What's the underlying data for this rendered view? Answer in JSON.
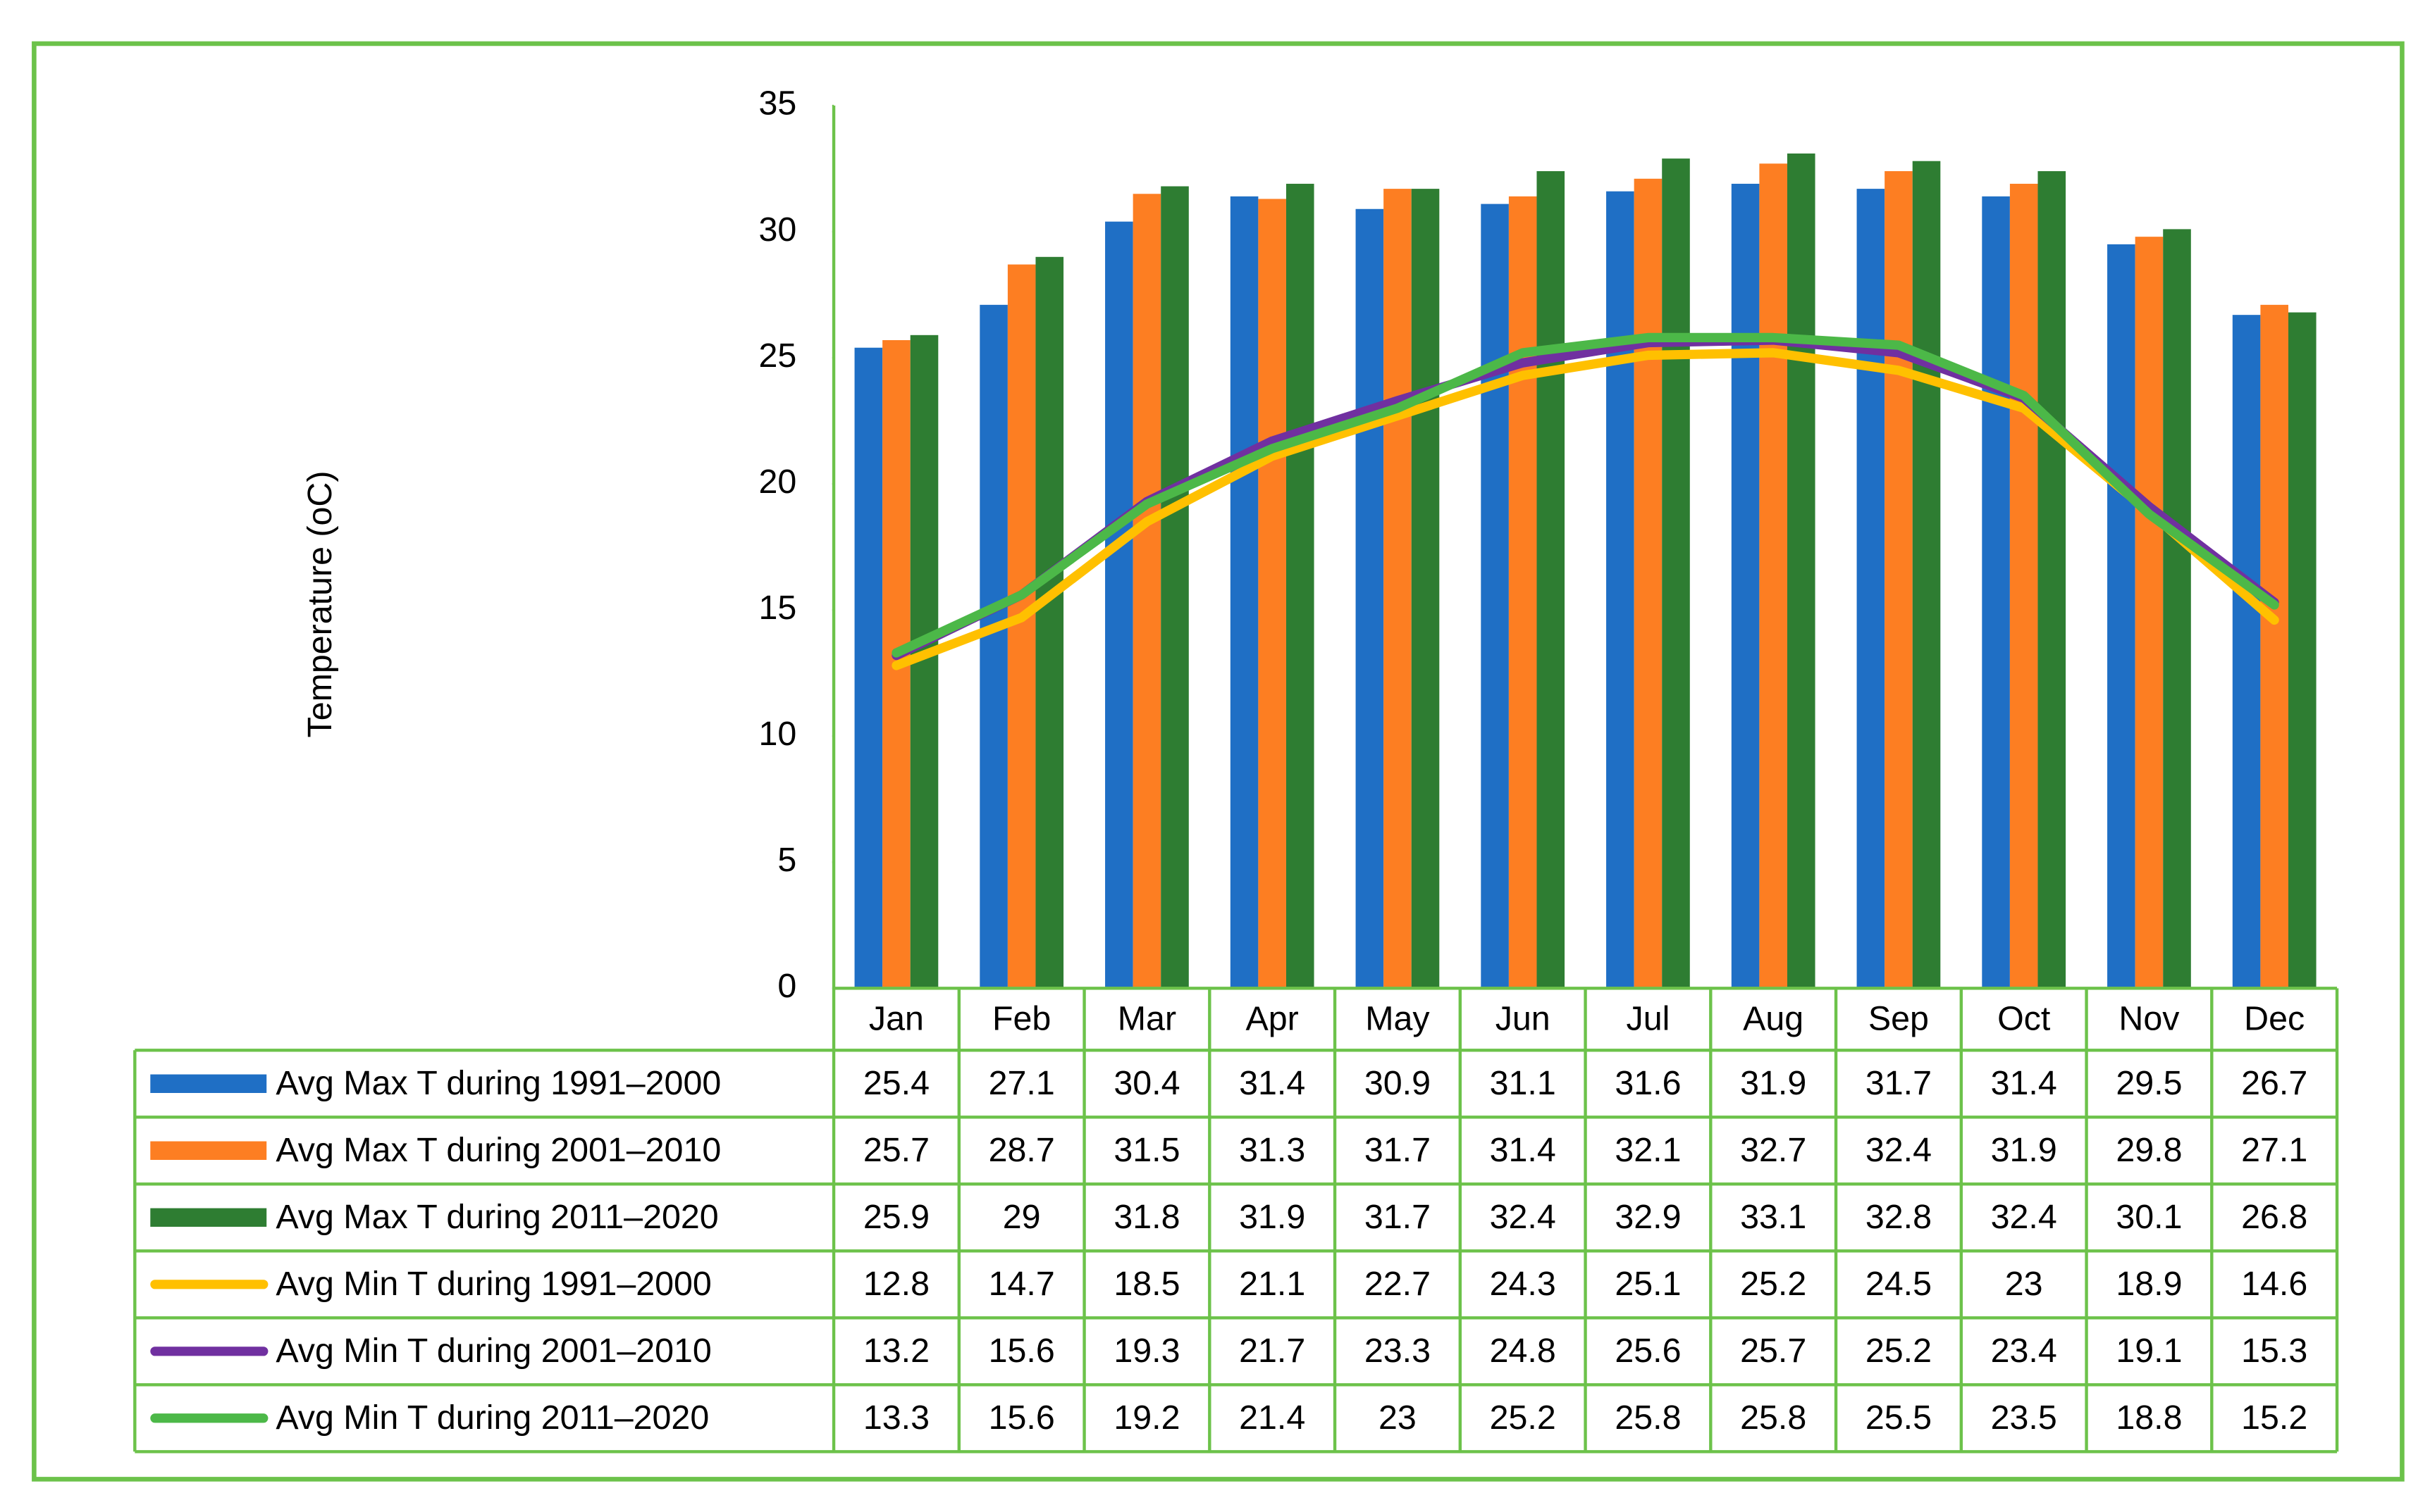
{
  "chart_data": {
    "type": "bar",
    "y_label": "Temperature (oC)",
    "categories": [
      "Jan",
      "Feb",
      "Mar",
      "Apr",
      "May",
      "Jun",
      "Jul",
      "Aug",
      "Sep",
      "Oct",
      "Nov",
      "Dec"
    ],
    "series": [
      {
        "name": "Avg Max T during 1991–2000",
        "kind": "bar",
        "color": "#1f6fc5",
        "values": [
          25.4,
          27.1,
          30.4,
          31.4,
          30.9,
          31.1,
          31.6,
          31.9,
          31.7,
          31.4,
          29.5,
          26.7
        ]
      },
      {
        "name": "Avg Max T during 2001–2010",
        "kind": "bar",
        "color": "#fd7e22",
        "values": [
          25.7,
          28.7,
          31.5,
          31.3,
          31.7,
          31.4,
          32.1,
          32.7,
          32.4,
          31.9,
          29.8,
          27.1
        ]
      },
      {
        "name": "Avg Max T during 2011–2020",
        "kind": "bar",
        "color": "#2e7d32",
        "values": [
          25.9,
          29,
          31.8,
          31.9,
          31.7,
          32.4,
          32.9,
          33.1,
          32.8,
          32.4,
          30.1,
          26.8
        ]
      },
      {
        "name": "Avg Min T during 1991–2000",
        "kind": "line",
        "color": "#ffc000",
        "values": [
          12.8,
          14.7,
          18.5,
          21.1,
          22.7,
          24.3,
          25.1,
          25.2,
          24.5,
          23,
          18.9,
          14.6
        ]
      },
      {
        "name": "Avg Min T during 2001–2010",
        "kind": "line",
        "color": "#7030a0",
        "values": [
          13.2,
          15.6,
          19.3,
          21.7,
          23.3,
          24.8,
          25.6,
          25.7,
          25.2,
          23.4,
          19.1,
          15.3
        ]
      },
      {
        "name": "Avg Min T during 2011–2020",
        "kind": "line",
        "color": "#4cb848",
        "values": [
          13.3,
          15.6,
          19.2,
          21.4,
          23,
          25.2,
          25.8,
          25.8,
          25.5,
          23.5,
          18.8,
          15.2
        ]
      }
    ],
    "ylim": [
      0,
      35
    ],
    "yticks": [
      0,
      5,
      10,
      15,
      20,
      25,
      30,
      35
    ],
    "grid": false,
    "data_table": true
  }
}
